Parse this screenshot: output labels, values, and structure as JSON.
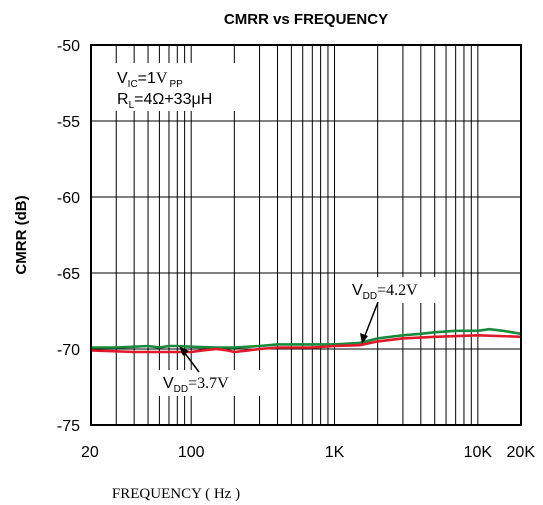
{
  "chart_data": {
    "type": "line",
    "title": "CMRR vs FREQUENCY",
    "xlabel": "FREQUENCY ( Hz )",
    "ylabel": "CMRR (dB)",
    "xscale": "log",
    "xlim": [
      20,
      20000
    ],
    "ylim": [
      -75,
      -50
    ],
    "grid": true,
    "x_ticks": [
      {
        "value": 20,
        "label": "20"
      },
      {
        "value": 100,
        "label": "100"
      },
      {
        "value": 1000,
        "label": "1K"
      },
      {
        "value": 10000,
        "label": "10K"
      },
      {
        "value": 20000,
        "label": "20K"
      }
    ],
    "y_ticks": [
      {
        "value": -50,
        "label": "-50"
      },
      {
        "value": -55,
        "label": "-55"
      },
      {
        "value": -60,
        "label": "-60"
      },
      {
        "value": -65,
        "label": "-65"
      },
      {
        "value": -70,
        "label": "-70"
      },
      {
        "value": -75,
        "label": "-75"
      }
    ],
    "conditions": {
      "vic": {
        "main": "V",
        "sub": "IC",
        "value": "=1",
        "unit": "V",
        "unit_sub": "PP"
      },
      "rl": {
        "main": "R",
        "sub": "L",
        "value": "=4Ω+33μH"
      }
    },
    "series": [
      {
        "name": "VDD=4.2V",
        "color": "#1a8a3c",
        "x": [
          20,
          30,
          40,
          50,
          60,
          70,
          80,
          100,
          150,
          200,
          300,
          400,
          500,
          700,
          1000,
          1500,
          2000,
          3000,
          4000,
          5000,
          7000,
          10000,
          12000,
          15000,
          20000
        ],
        "y": [
          -69.9,
          -69.9,
          -69.85,
          -69.8,
          -69.9,
          -69.8,
          -69.8,
          -69.85,
          -69.9,
          -69.9,
          -69.8,
          -69.7,
          -69.7,
          -69.7,
          -69.7,
          -69.6,
          -69.3,
          -69.1,
          -69.0,
          -68.9,
          -68.8,
          -68.8,
          -68.7,
          -68.8,
          -69.0
        ]
      },
      {
        "name": "VDD=3.7V",
        "color": "#e01a2a",
        "x": [
          20,
          30,
          40,
          50,
          60,
          70,
          80,
          100,
          120,
          150,
          180,
          200,
          250,
          300,
          400,
          500,
          700,
          1000,
          1500,
          2000,
          3000,
          5000,
          10000,
          20000
        ],
        "y": [
          -70.1,
          -70.15,
          -70.2,
          -70.2,
          -70.2,
          -70.2,
          -70.2,
          -70.2,
          -70.1,
          -70.0,
          -70.1,
          -70.2,
          -70.1,
          -70.0,
          -69.9,
          -69.9,
          -69.9,
          -69.8,
          -69.75,
          -69.5,
          -69.3,
          -69.2,
          -69.1,
          -69.2
        ]
      }
    ],
    "annotations": [
      {
        "main": "V",
        "sub": "DD",
        "value": "=4.2V",
        "series": "VDD=4.2V",
        "arrow_at": {
          "x": 1700,
          "y": -69.5
        }
      },
      {
        "main": "V",
        "sub": "DD",
        "value": "=3.7V",
        "series": "VDD=3.7V",
        "arrow_at": {
          "x": 80,
          "y": -70.0
        }
      }
    ]
  }
}
